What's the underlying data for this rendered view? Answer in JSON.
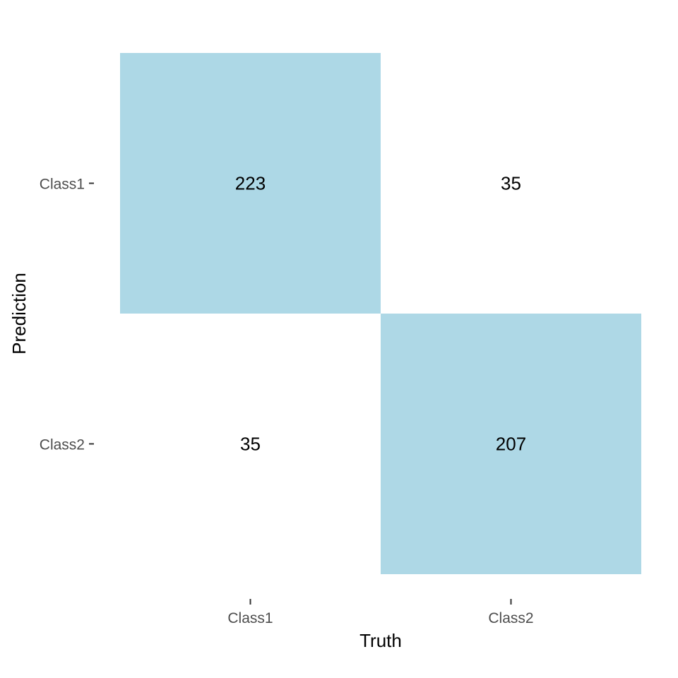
{
  "chart_data": {
    "type": "heatmap",
    "title": "",
    "xlabel": "Truth",
    "ylabel": "Prediction",
    "x_categories": [
      "Class1",
      "Class2"
    ],
    "y_categories": [
      "Class1",
      "Class2"
    ],
    "cells": [
      {
        "truth": "Class1",
        "prediction": "Class1",
        "value": 223
      },
      {
        "truth": "Class2",
        "prediction": "Class1",
        "value": 35
      },
      {
        "truth": "Class1",
        "prediction": "Class2",
        "value": 35
      },
      {
        "truth": "Class2",
        "prediction": "Class2",
        "value": 207
      }
    ],
    "grid": false,
    "legend": "none",
    "fill_color": "#add8e6",
    "background_color": "#ffffff"
  }
}
